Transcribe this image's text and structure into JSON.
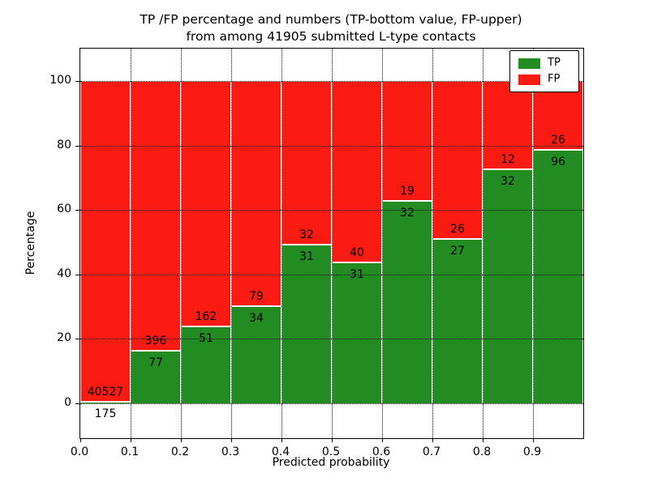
{
  "title": {
    "line1": "TP /FP percentage and numbers (TP-bottom value, FP-upper)",
    "line2": "from among 41905 submitted L-type contacts"
  },
  "axes": {
    "x_label": "Predicted probability",
    "y_label": "Percentage",
    "x_tick_labels": [
      "0.0",
      "0.1",
      "0.2",
      "0.3",
      "0.4",
      "0.5",
      "0.6",
      "0.7",
      "0.8",
      "0.9"
    ],
    "y_tick_labels": [
      "0",
      "20",
      "40",
      "60",
      "80",
      "100"
    ],
    "y_tick_values": [
      0,
      20,
      40,
      60,
      80,
      100
    ],
    "x_range": [
      0.0,
      1.0
    ]
  },
  "legend": {
    "items": [
      {
        "label": "TP",
        "color": "#228b22"
      },
      {
        "label": "FP",
        "color": "#fb1b13"
      }
    ],
    "position": "upper right"
  },
  "colors": {
    "tp": "#228b22",
    "fp": "#fb1b13",
    "grid": "#000000",
    "bar_edge": "#ffffff",
    "background": "#ffffff"
  },
  "chart_data": {
    "type": "bar",
    "stacked": true,
    "title": "TP /FP percentage and numbers (TP-bottom value, FP-upper) from among 41905 submitted L-type contacts",
    "xlabel": "Predicted probability",
    "ylabel": "Percentage",
    "ylim_pct": [
      -10.8,
      110.5
    ],
    "grid": "dotted",
    "legend_position": "upper right",
    "categories": [
      "0.0-0.1",
      "0.1-0.2",
      "0.2-0.3",
      "0.3-0.4",
      "0.4-0.5",
      "0.5-0.6",
      "0.6-0.7",
      "0.7-0.8",
      "0.8-0.9",
      "0.9-1.0"
    ],
    "series": [
      {
        "name": "TP",
        "counts": [
          175,
          77,
          51,
          34,
          31,
          31,
          32,
          27,
          32,
          96
        ],
        "pct": [
          0.43,
          16.28,
          23.94,
          30.09,
          49.21,
          43.66,
          62.75,
          50.94,
          72.73,
          78.69
        ]
      },
      {
        "name": "FP",
        "counts": [
          40527,
          396,
          162,
          79,
          32,
          40,
          19,
          26,
          12,
          26
        ],
        "pct": [
          99.57,
          83.72,
          76.06,
          69.91,
          50.79,
          56.34,
          37.25,
          49.06,
          27.27,
          21.31
        ]
      }
    ]
  }
}
